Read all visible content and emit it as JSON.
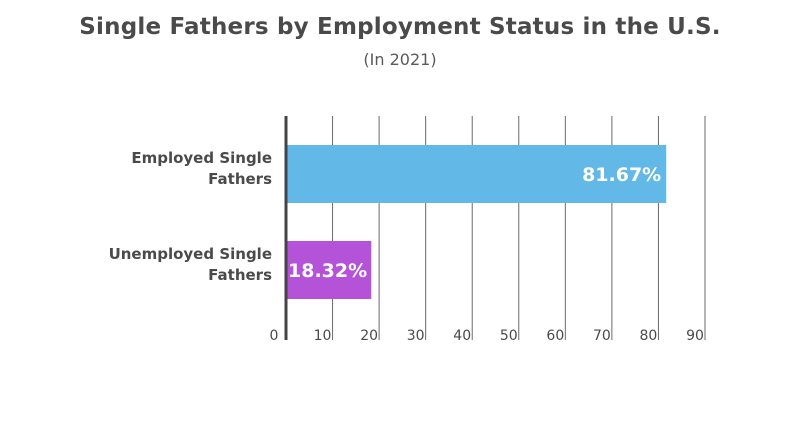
{
  "chart_data": {
    "type": "bar",
    "orientation": "horizontal",
    "title": "Single Fathers by Employment Status in the U.S.",
    "subtitle": "(In 2021)",
    "categories": [
      [
        "Employed Single",
        "Fathers"
      ],
      [
        "Unemployed Single",
        "Fathers"
      ]
    ],
    "values": [
      81.67,
      18.32
    ],
    "value_labels": [
      "81.67%",
      "18.32%"
    ],
    "colors": [
      "#62b8e6",
      "#b452d8"
    ],
    "xlim": [
      0,
      90
    ],
    "xticks": [
      0,
      10,
      20,
      30,
      40,
      50,
      60,
      70,
      80,
      90
    ],
    "grid": true,
    "legend": "none"
  }
}
